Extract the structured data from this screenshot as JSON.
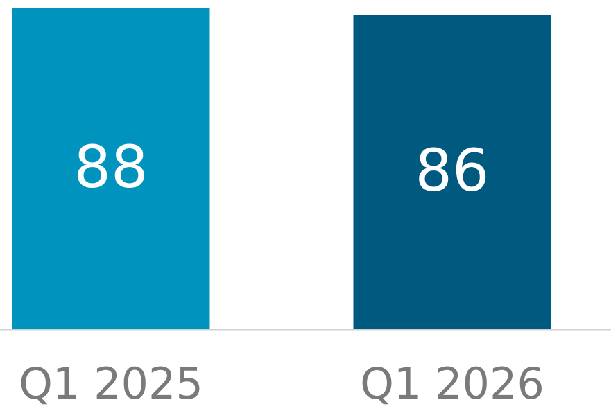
{
  "chart_data": {
    "type": "bar",
    "categories": [
      "Q1 2025",
      "Q1 2026"
    ],
    "values": [
      88,
      86
    ],
    "colors": [
      "#0093bd",
      "#005a80"
    ],
    "ylim": [
      0,
      90
    ]
  }
}
